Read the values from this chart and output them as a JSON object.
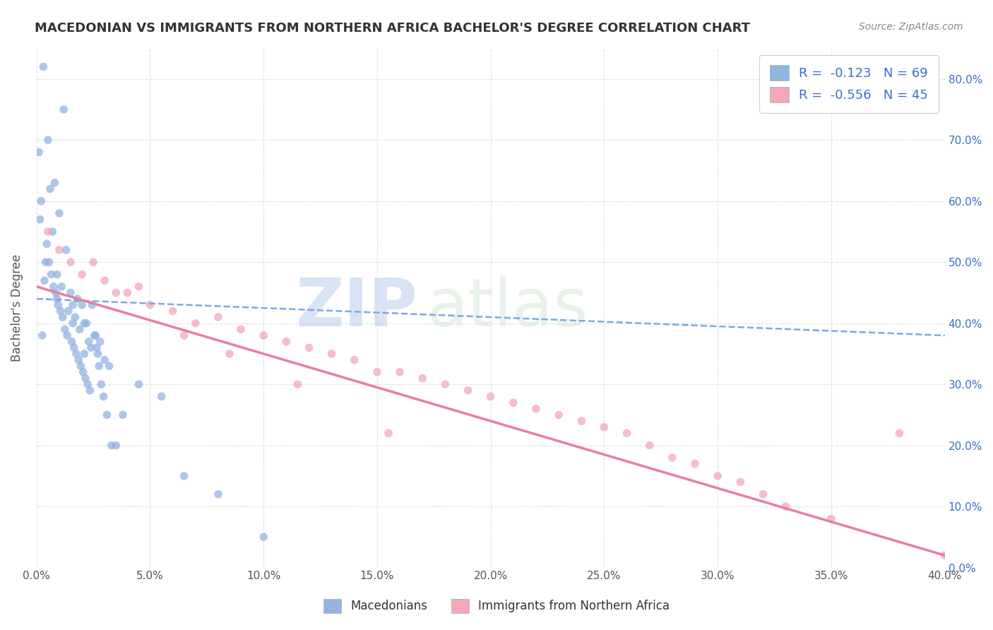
{
  "title": "MACEDONIAN VS IMMIGRANTS FROM NORTHERN AFRICA BACHELOR'S DEGREE CORRELATION CHART",
  "source": "Source: ZipAtlas.com",
  "ylabel_label": "Bachelor's Degree",
  "xlim": [
    0.0,
    40.0
  ],
  "ylim": [
    0.0,
    85.0
  ],
  "xticks": [
    0.0,
    5.0,
    10.0,
    15.0,
    20.0,
    25.0,
    30.0,
    35.0,
    40.0
  ],
  "yticks": [
    0.0,
    10.0,
    20.0,
    30.0,
    40.0,
    50.0,
    60.0,
    70.0,
    80.0
  ],
  "ytick_labels": [
    "0.0%",
    "10.0%",
    "20.0%",
    "30.0%",
    "40.0%",
    "50.0%",
    "60.0%",
    "70.0%",
    "80.0%"
  ],
  "xtick_labels": [
    "0.0%",
    "5.0%",
    "10.0%",
    "15.0%",
    "20.0%",
    "25.0%",
    "30.0%",
    "35.0%",
    "40.0%"
  ],
  "series1_color": "#92b4e3",
  "series2_color": "#f4a7b9",
  "series1_label": "Macedonians",
  "series2_label": "Immigrants from Northern Africa",
  "R1": -0.123,
  "N1": 69,
  "R2": -0.556,
  "N2": 45,
  "legend_text_color": "#3a6fc4",
  "watermark_zip": "ZIP",
  "watermark_atlas": "atlas",
  "background_color": "#ffffff",
  "grid_color": "#dddddd",
  "series1_x": [
    0.3,
    1.2,
    0.5,
    0.8,
    0.2,
    1.0,
    0.7,
    1.3,
    0.4,
    0.6,
    0.9,
    0.35,
    1.1,
    1.5,
    1.8,
    1.6,
    1.4,
    2.0,
    1.7,
    2.2,
    1.9,
    0.25,
    2.3,
    2.1,
    2.4,
    2.7,
    2.6,
    3.0,
    2.8,
    3.2,
    0.15,
    0.45,
    0.55,
    0.65,
    0.75,
    0.85,
    0.95,
    1.05,
    1.15,
    1.25,
    1.35,
    1.55,
    1.65,
    1.75,
    1.85,
    1.95,
    2.05,
    2.15,
    2.25,
    2.35,
    2.45,
    2.55,
    2.65,
    2.75,
    2.85,
    2.95,
    3.1,
    3.3,
    0.1,
    0.9,
    1.6,
    2.1,
    3.5,
    3.8,
    4.5,
    5.5,
    6.5,
    8.0,
    10.0
  ],
  "series1_y": [
    82.0,
    75.0,
    70.0,
    63.0,
    60.0,
    58.0,
    55.0,
    52.0,
    50.0,
    62.0,
    48.0,
    47.0,
    46.0,
    45.0,
    44.0,
    43.0,
    42.0,
    43.0,
    41.0,
    40.0,
    39.0,
    38.0,
    37.0,
    40.0,
    36.0,
    35.0,
    38.0,
    34.0,
    37.0,
    33.0,
    57.0,
    53.0,
    50.0,
    48.0,
    46.0,
    45.0,
    43.0,
    42.0,
    41.0,
    39.0,
    38.0,
    37.0,
    36.0,
    35.0,
    34.0,
    33.0,
    32.0,
    31.0,
    30.0,
    29.0,
    43.0,
    38.0,
    36.0,
    33.0,
    30.0,
    28.0,
    25.0,
    20.0,
    68.0,
    44.0,
    40.0,
    35.0,
    20.0,
    25.0,
    30.0,
    28.0,
    15.0,
    12.0,
    5.0
  ],
  "series2_x": [
    0.5,
    1.0,
    1.5,
    2.0,
    2.5,
    3.0,
    3.5,
    4.0,
    5.0,
    6.0,
    7.0,
    8.0,
    9.0,
    10.0,
    11.0,
    12.0,
    13.0,
    14.0,
    15.0,
    16.0,
    17.0,
    18.0,
    19.0,
    20.0,
    21.0,
    22.0,
    23.0,
    24.0,
    25.0,
    26.0,
    27.0,
    28.0,
    29.0,
    30.0,
    31.0,
    32.0,
    33.0,
    35.0,
    38.0,
    40.0,
    4.5,
    6.5,
    8.5,
    11.5,
    15.5
  ],
  "series2_y": [
    55.0,
    52.0,
    50.0,
    48.0,
    50.0,
    47.0,
    45.0,
    45.0,
    43.0,
    42.0,
    40.0,
    41.0,
    39.0,
    38.0,
    37.0,
    36.0,
    35.0,
    34.0,
    32.0,
    32.0,
    31.0,
    30.0,
    29.0,
    28.0,
    27.0,
    26.0,
    25.0,
    24.0,
    23.0,
    22.0,
    20.0,
    18.0,
    17.0,
    15.0,
    14.0,
    12.0,
    10.0,
    8.0,
    22.0,
    2.0,
    46.0,
    38.0,
    35.0,
    30.0,
    22.0
  ]
}
